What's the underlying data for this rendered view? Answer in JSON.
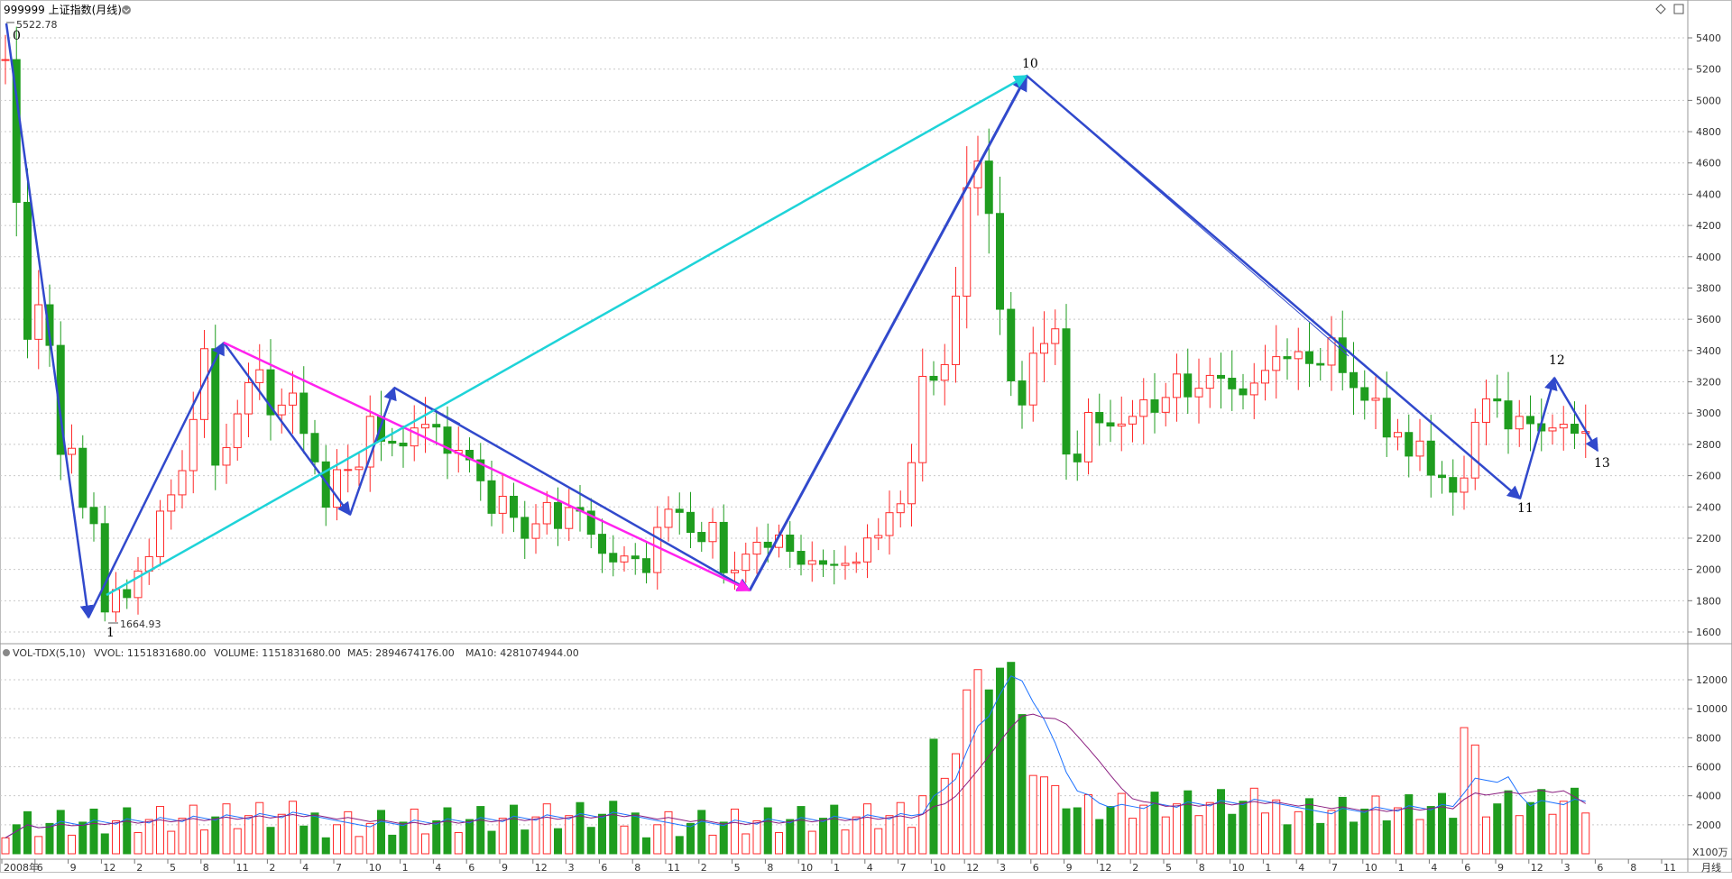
{
  "title": "999999 上证指数(月线)",
  "period_label": "月线",
  "colors": {
    "up": "#ff2a2a",
    "down": "#1f9d1f",
    "ma5": "#1f73ff",
    "ma10": "#8a1d7f",
    "wave": "#3149cc",
    "teal": "#1ed3d8",
    "magenta": "#ff22ee",
    "grid": "#c9c9c9"
  },
  "upper": {
    "max_label": "5522.78",
    "min_label": "1664.93",
    "y_ticks": [
      "1600",
      "1800",
      "2000",
      "2200",
      "2400",
      "2600",
      "2800",
      "3000",
      "3200",
      "3400",
      "3600",
      "3800",
      "4000",
      "4200",
      "4400",
      "4600",
      "4800",
      "5000",
      "5200",
      "5400"
    ],
    "wave_labels": [
      "0",
      "1",
      "10",
      "11",
      "12",
      "13"
    ]
  },
  "lower": {
    "indicator": "VOL-TDX(5,10)",
    "vvol": "VVOL: 1151831680.00",
    "volume": "VOLUME: 1151831680.00",
    "ma5": "MA5: 2894674176.00",
    "ma10": "MA10: 4281074944.00",
    "y_ticks": [
      "2000",
      "4000",
      "6000",
      "8000",
      "10000",
      "12000"
    ],
    "unit": "X100万"
  },
  "x_labels": [
    "2008年",
    "6",
    "9",
    "12",
    "2",
    "5",
    "8",
    "11",
    "2",
    "4",
    "7",
    "10",
    "1",
    "4",
    "6",
    "9",
    "12",
    "3",
    "6",
    "8",
    "11",
    "2",
    "5",
    "8",
    "10",
    "1",
    "4",
    "7",
    "10",
    "12",
    "3",
    "6",
    "9",
    "12",
    "2",
    "5",
    "8",
    "10",
    "1",
    "4",
    "7",
    "10",
    "1",
    "4",
    "6",
    "9",
    "12",
    "3",
    "6",
    "8",
    "11"
  ],
  "chart_data": {
    "type": "candlestick",
    "period": "monthly",
    "symbol": "999999 上证指数",
    "ohlc_series": "approx monthly candles 2008-2019, see script-derived visual",
    "ylim": [
      1550,
      5550
    ],
    "volume_ylim": [
      0,
      13500
    ],
    "highlights": {
      "high": 5522.78,
      "low": 1664.93
    }
  }
}
